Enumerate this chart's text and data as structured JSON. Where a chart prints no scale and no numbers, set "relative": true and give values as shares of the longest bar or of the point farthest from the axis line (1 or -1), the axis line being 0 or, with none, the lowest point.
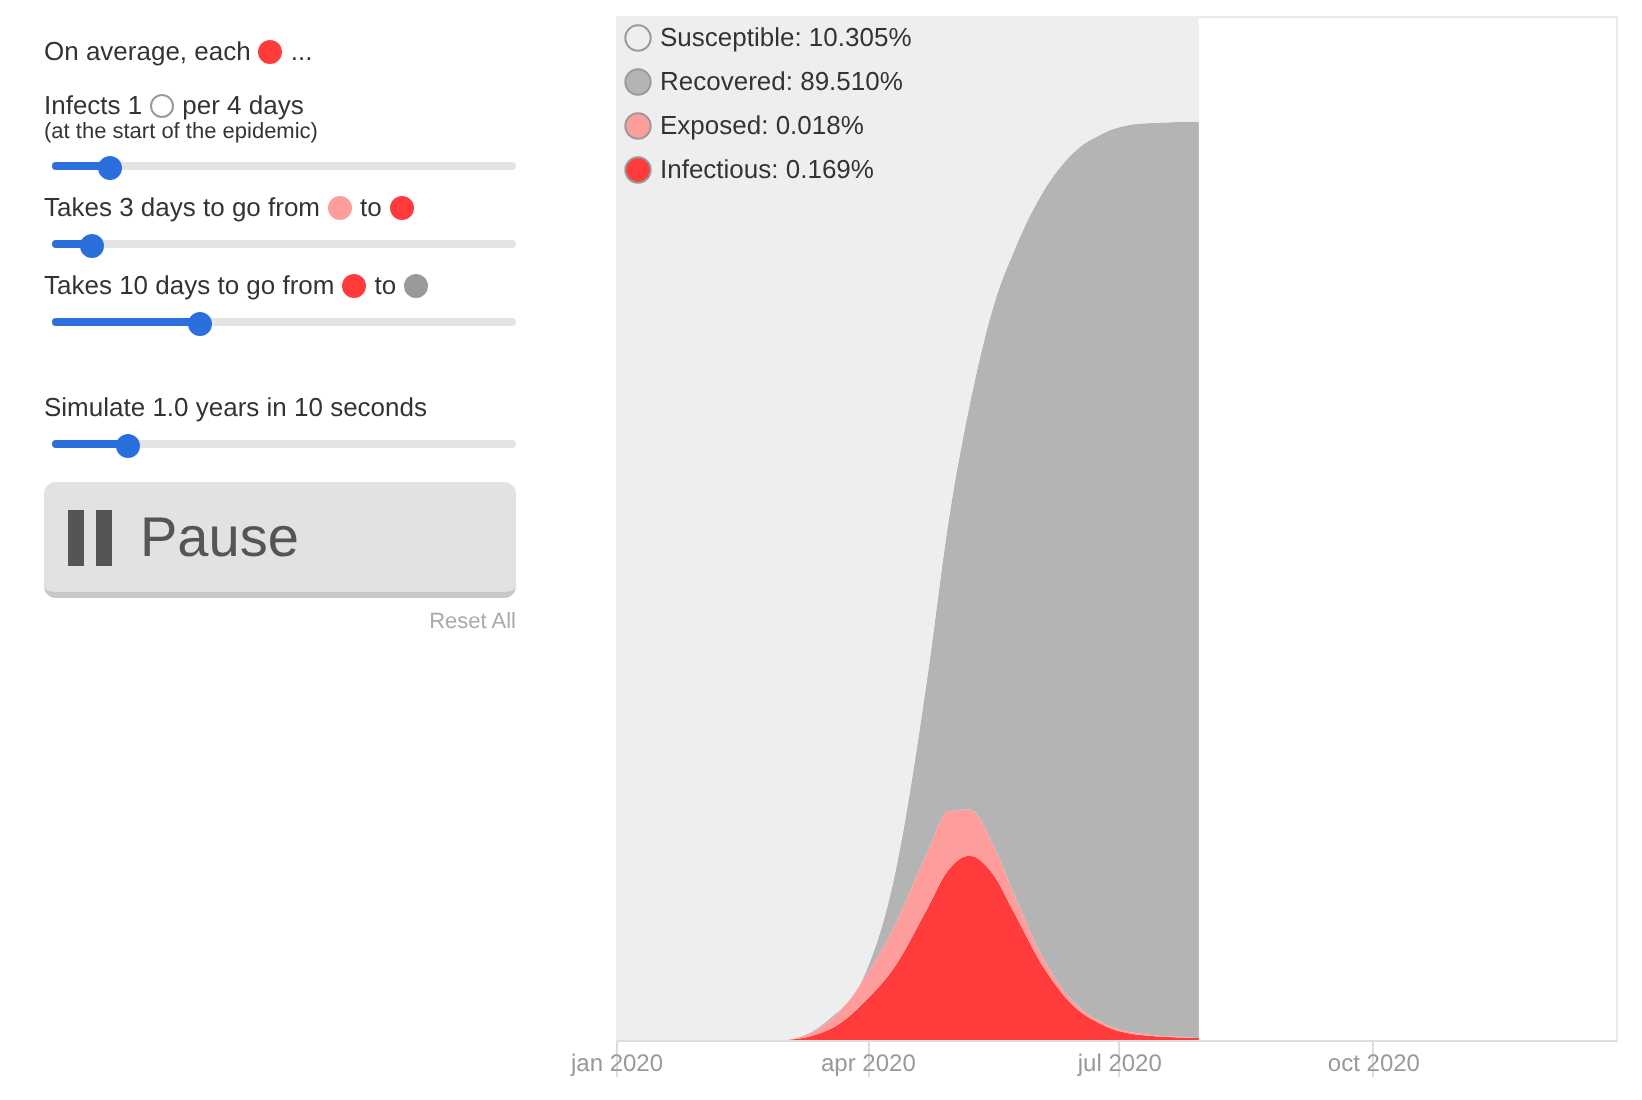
{
  "chart_data": [
    {
      "type": "other",
      "annotations": [
        "On average, each",
        "...",
        "Infects 1",
        "per 4 days",
        "(at the start of the epidemic)",
        "Takes 3 days to go from",
        "to",
        "Takes 10 days to go from",
        "to",
        "Simulate 1.0 years in 10 seconds",
        "Pause",
        "Reset All"
      ]
    },
    {
      "type": "area",
      "stacked": true,
      "relative": true,
      "legend": "top left",
      "x": [
        "2020-01-01",
        "2020-03-01",
        "2020-03-18",
        "2020-04-01",
        "2020-04-10",
        "2020-04-23",
        "2020-04-30",
        "2020-05-08",
        "2020-05-17",
        "2020-05-24",
        "2020-06-04",
        "2020-06-14",
        "2020-06-25",
        "2020-07-09",
        "2020-07-30"
      ],
      "xlim": [
        "2020-01-01",
        "2020-12-28"
      ],
      "xticks": [
        {
          "value": "2020-01-01",
          "label": "jan 2020"
        },
        {
          "value": "2020-04-01",
          "label": "apr 2020"
        },
        {
          "value": "2020-07-01",
          "label": "jul 2020"
        },
        {
          "value": "2020-10-01",
          "label": "oct 2020"
        }
      ],
      "series": [
        {
          "name": "Infectious: 0.169%",
          "color": "#ff3b3b",
          "values": [
            0,
            0,
            0.01,
            0.04,
            0.068,
            0.13,
            0.165,
            0.18,
            0.16,
            0.125,
            0.07,
            0.035,
            0.015,
            0.005,
            0.002
          ]
        },
        {
          "name": "Exposed: 0.018%",
          "color": "#ff9c9c",
          "values": [
            0,
            0,
            0.008,
            0.025,
            0.039,
            0.055,
            0.058,
            0.045,
            0.028,
            0.018,
            0.008,
            0.004,
            0.002,
            0.001,
            0
          ]
        },
        {
          "name": "Recovered: 89.510%",
          "color": "#b4b4b4",
          "values": [
            0,
            0,
            0.002,
            0.005,
            0.043,
            0.175,
            0.277,
            0.395,
            0.532,
            0.627,
            0.752,
            0.826,
            0.868,
            0.889,
            0.895
          ]
        },
        {
          "name": "Susceptible: 10.305%",
          "color": "#eeeeee",
          "values": [
            1,
            1,
            0.98,
            0.93,
            0.85,
            0.64,
            0.5,
            0.38,
            0.28,
            0.23,
            0.17,
            0.135,
            0.115,
            0.105,
            0.103
          ]
        }
      ]
    }
  ]
}
